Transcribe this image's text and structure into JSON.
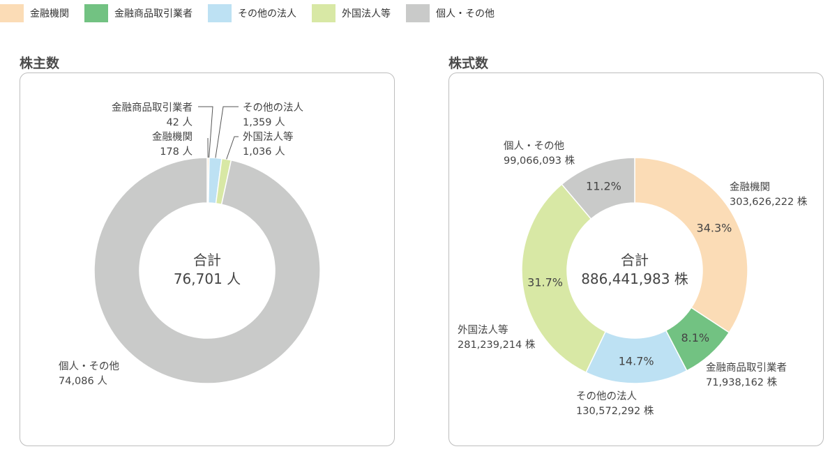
{
  "legend": [
    {
      "label": "金融機関",
      "color": "#fbdcb6"
    },
    {
      "label": "金融商品取引業者",
      "color": "#72c282"
    },
    {
      "label": "その他の法人",
      "color": "#bde1f3"
    },
    {
      "label": "外国法人等",
      "color": "#d8e8a5"
    },
    {
      "label": "個人・その他",
      "color": "#c9cac9"
    }
  ],
  "sections": {
    "left_title": "株主数",
    "right_title": "株式数"
  },
  "chart_data": [
    {
      "type": "pie",
      "title": "株主数",
      "categories": [
        "金融機関",
        "金融商品取引業者",
        "その他の法人",
        "外国法人等",
        "個人・その他"
      ],
      "values": [
        178,
        42,
        1359,
        1036,
        74086
      ],
      "value_labels": [
        "178 人",
        "42 人",
        "1,359 人",
        "1,036 人",
        "74,086 人"
      ],
      "center_label": "合計",
      "center_value": "76,701 人",
      "donut": true
    },
    {
      "type": "pie",
      "title": "株式数",
      "categories": [
        "金融機関",
        "金融商品取引業者",
        "その他の法人",
        "外国法人等",
        "個人・その他"
      ],
      "values": [
        303626222,
        71938162,
        130572292,
        281239214,
        99066093
      ],
      "value_labels": [
        "303,626,222 株",
        "71,938,162 株",
        "130,572,292 株",
        "281,239,214 株",
        "99,066,093 株"
      ],
      "percent_labels": [
        "34.3%",
        "8.1%",
        "14.7%",
        "31.7%",
        "11.2%"
      ],
      "center_label": "合計",
      "center_value": "886,441,983 株",
      "donut": true
    }
  ]
}
